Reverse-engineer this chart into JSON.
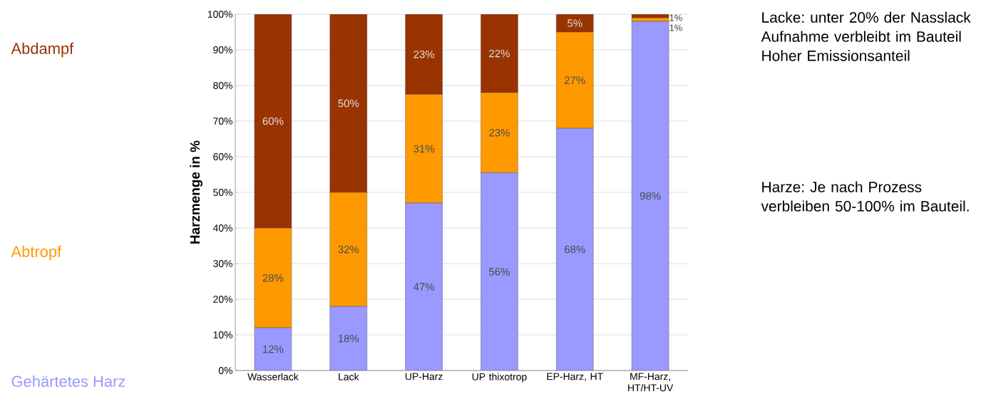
{
  "chart_data": {
    "type": "bar",
    "stacked": true,
    "ylabel": "Harzmenge in %",
    "categories": [
      "Wasserlack",
      "Lack",
      "UP-Harz",
      "UP thixotrop",
      "EP-Harz, HT",
      "MF-Harz, HT/HT-UV"
    ],
    "series": [
      {
        "name": "Gehärtetes Harz",
        "color": "#9999ff",
        "values": [
          12,
          18,
          47,
          55.5,
          68,
          98
        ],
        "value_labels": [
          "12%",
          "18%",
          "47%",
          "56%",
          "68%",
          "98%"
        ]
      },
      {
        "name": "Abtropf",
        "color": "#ff9900",
        "values": [
          28,
          32,
          30.5,
          22.5,
          27,
          1
        ],
        "value_labels": [
          "28%",
          "32%",
          "31%",
          "23%",
          "27%",
          "1%"
        ]
      },
      {
        "name": "Abdampf",
        "color": "#993300",
        "values": [
          60,
          50,
          22.5,
          22,
          5,
          1
        ],
        "value_labels": [
          "60%",
          "50%",
          "23%",
          "22%",
          "5%",
          "1%"
        ]
      }
    ],
    "ylim": [
      0,
      100
    ],
    "yticks": [
      {
        "value": 0,
        "label": "0%"
      },
      {
        "value": 10,
        "label": "10%"
      },
      {
        "value": 20,
        "label": "20%"
      },
      {
        "value": 30,
        "label": "30%"
      },
      {
        "value": 40,
        "label": "40%"
      },
      {
        "value": 50,
        "label": "50%"
      },
      {
        "value": 60,
        "label": "60%"
      },
      {
        "value": 70,
        "label": "70%"
      },
      {
        "value": 80,
        "label": "80%"
      },
      {
        "value": 90,
        "label": "90%"
      },
      {
        "value": 100,
        "label": "100%"
      }
    ],
    "grid": "y",
    "annotations": [
      "Lacke: unter 20% der Nasslack Aufnahme verbleibt im Bauteil Hoher Emissionsanteil",
      "Harze: Je nach Prozess verbleiben 50-100% im Bauteil."
    ]
  }
}
